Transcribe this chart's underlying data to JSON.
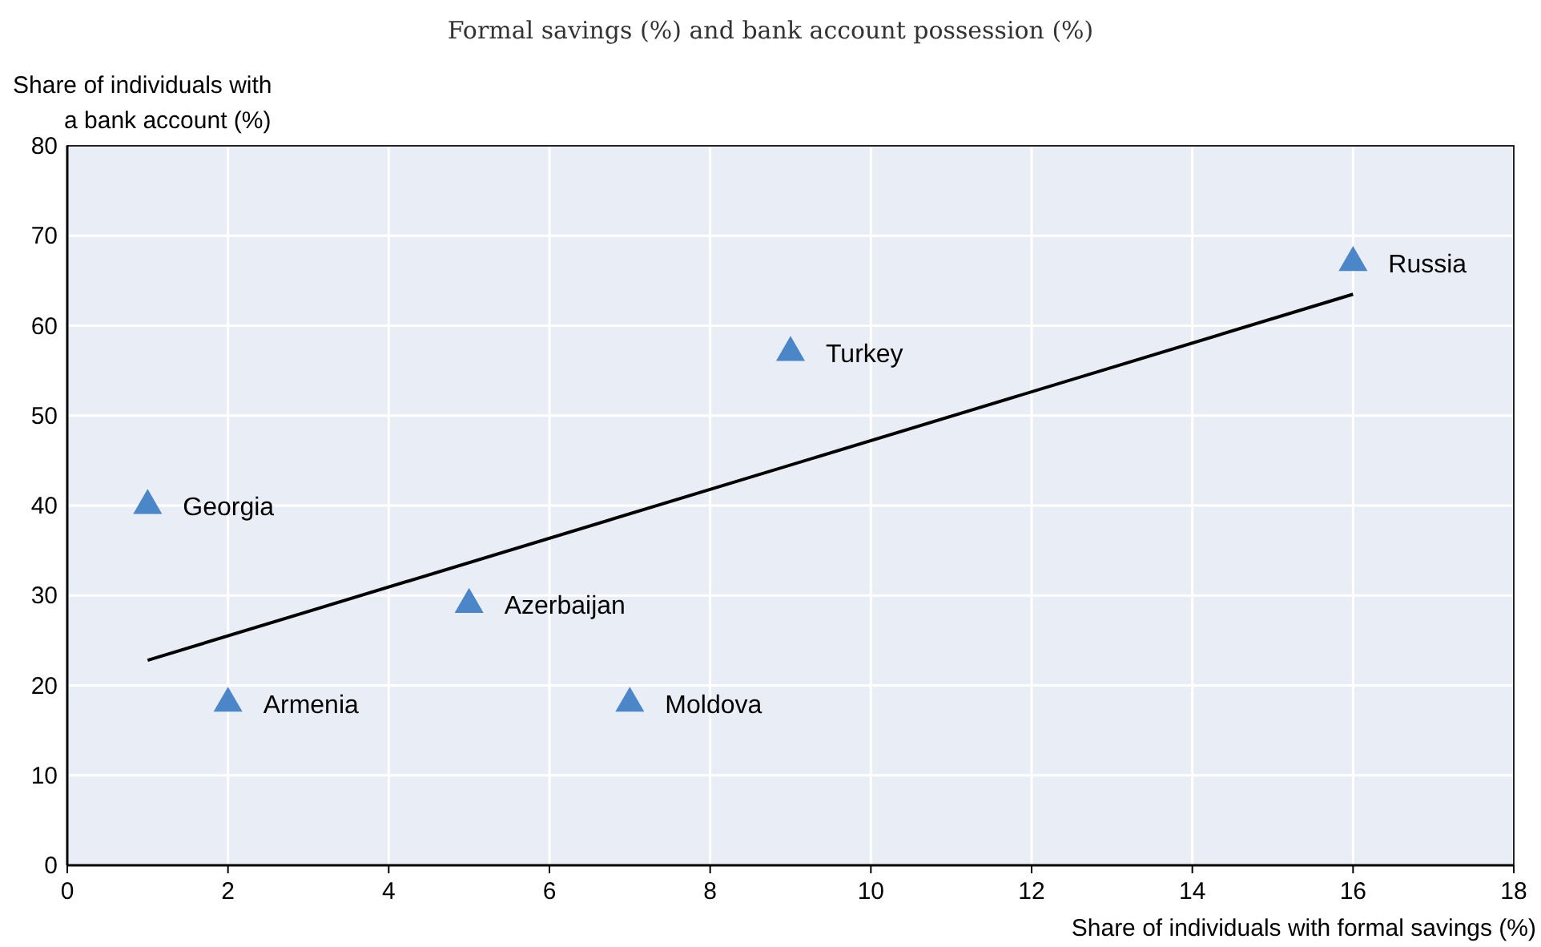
{
  "chart_data": {
    "type": "scatter",
    "subtitle": "Formal savings (%) and bank account possession (%)",
    "xlabel": "Share of individuals with formal savings (%)",
    "ylabel": "Share of individuals with\na bank account (%)",
    "xlim": [
      0,
      18
    ],
    "xticks": [
      0,
      2,
      4,
      6,
      8,
      10,
      12,
      14,
      16,
      18
    ],
    "ylim": [
      0,
      80
    ],
    "yticks": [
      0,
      10,
      20,
      30,
      40,
      50,
      60,
      70,
      80
    ],
    "grid": true,
    "series": [
      {
        "marker": "triangle",
        "color": "#4a86c8",
        "x": [
          1,
          2,
          5,
          7,
          9,
          16
        ],
        "values": [
          40,
          18,
          29,
          18,
          57,
          67
        ]
      },
      {
        "type": "line",
        "marker": "none",
        "color": "#000000",
        "x": [
          1,
          16
        ],
        "values": [
          22.8,
          63.5
        ]
      }
    ],
    "annotations": [
      {
        "text": "Georgia",
        "x": 1,
        "y": 40
      },
      {
        "text": "Armenia",
        "x": 2,
        "y": 18
      },
      {
        "text": "Azerbaijan",
        "x": 5,
        "y": 29
      },
      {
        "text": "Moldova",
        "x": 7,
        "y": 18
      },
      {
        "text": "Turkey",
        "x": 9,
        "y": 57
      },
      {
        "text": "Russia",
        "x": 16,
        "y": 67
      }
    ]
  }
}
